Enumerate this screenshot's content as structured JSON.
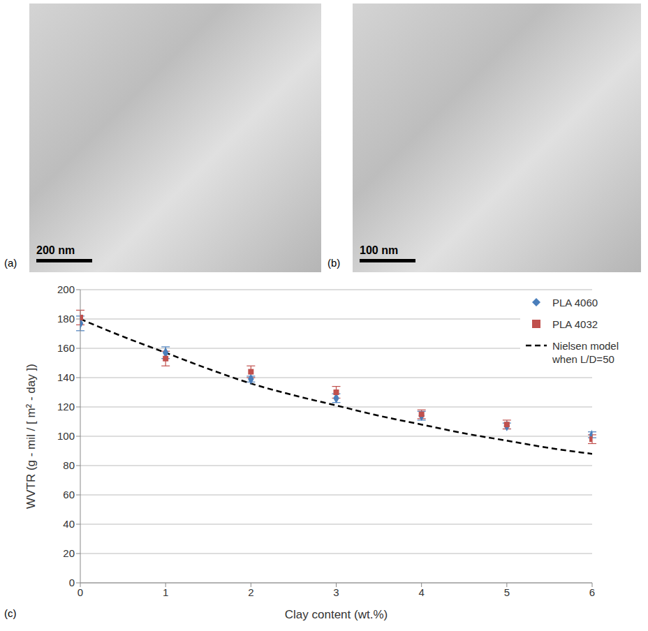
{
  "images": [
    {
      "label": "(a)",
      "scale_bar": "200 nm"
    },
    {
      "label": "(b)",
      "scale_bar": "100 nm"
    }
  ],
  "chart_data": {
    "type": "scatter",
    "panel_label": "(c)",
    "x_label": "Clay content (wt.%)",
    "y_label": "WVTR (g - mil / [ m² - day ])",
    "xlim": [
      0,
      6
    ],
    "xticks": [
      0,
      1,
      2,
      3,
      4,
      5,
      6
    ],
    "ylim": [
      0,
      200
    ],
    "yticks": [
      0,
      20,
      40,
      60,
      80,
      100,
      120,
      140,
      160,
      180,
      200
    ],
    "grid": true,
    "legend": "upper right",
    "series": [
      {
        "name": "PLA 4060",
        "type": "scatter",
        "marker": "diamond",
        "color": "#4a7ebb",
        "x": [
          0,
          1,
          2,
          3,
          4,
          5,
          6
        ],
        "values": [
          177,
          157,
          139,
          126,
          114,
          107,
          101
        ],
        "errors": [
          5,
          4,
          2,
          3,
          3,
          2,
          2
        ]
      },
      {
        "name": "PLA 4032",
        "type": "scatter",
        "marker": "square",
        "color": "#c0504d",
        "x": [
          0,
          1,
          2,
          3,
          4,
          5,
          6
        ],
        "values": [
          181,
          153,
          144,
          130,
          115,
          108,
          98
        ],
        "errors": [
          5,
          5,
          4,
          4,
          3,
          3,
          3
        ]
      },
      {
        "name": "Nielsen model when L/D=50",
        "type": "line",
        "line_style": "dashed",
        "color": "#000000",
        "x": [
          0,
          0.5,
          1,
          1.5,
          2,
          2.5,
          3,
          3.5,
          4,
          4.5,
          5,
          5.5,
          6
        ],
        "values": [
          180,
          168,
          157,
          146,
          136,
          128,
          121,
          114,
          108,
          102,
          97,
          92,
          88
        ]
      }
    ]
  }
}
